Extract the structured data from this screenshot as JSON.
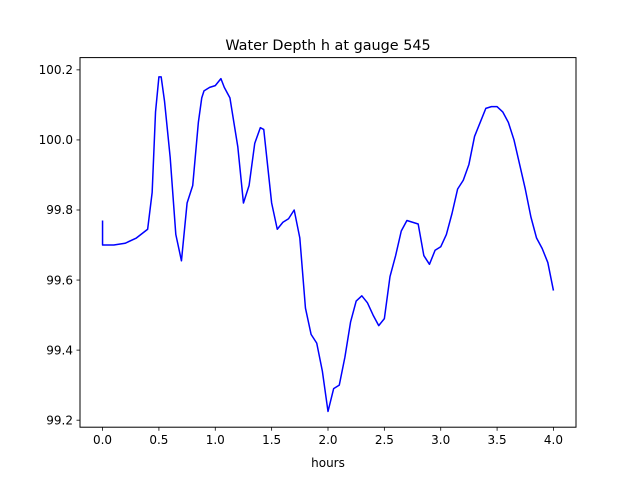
{
  "chart_data": {
    "type": "line",
    "title": "Water Depth h at gauge 545",
    "xlabel": "hours",
    "ylabel": "",
    "xlim": [
      -0.2,
      4.2
    ],
    "ylim": [
      99.18,
      100.235
    ],
    "x_ticks": [
      0.0,
      0.5,
      1.0,
      1.5,
      2.0,
      2.5,
      3.0,
      3.5,
      4.0
    ],
    "x_tick_labels": [
      "0.0",
      "0.5",
      "1.0",
      "1.5",
      "2.0",
      "2.5",
      "3.0",
      "3.5",
      "4.0"
    ],
    "y_ticks": [
      99.2,
      99.4,
      99.6,
      99.8,
      100.0,
      100.2
    ],
    "y_tick_labels": [
      "99.2",
      "99.4",
      "99.6",
      "99.8",
      "100.0",
      "100.2"
    ],
    "grid": false,
    "line_color": "#0000ff",
    "series": [
      {
        "x": [
          0.0,
          0.0,
          0.1,
          0.2,
          0.3,
          0.4,
          0.44,
          0.47,
          0.5,
          0.52,
          0.55,
          0.6,
          0.65,
          0.7,
          0.75,
          0.8,
          0.85,
          0.88,
          0.9,
          0.95,
          1.0,
          1.05,
          1.08,
          1.13,
          1.2,
          1.25,
          1.3,
          1.35,
          1.4,
          1.43,
          1.5,
          1.55,
          1.6,
          1.65,
          1.7,
          1.75,
          1.8,
          1.85,
          1.9,
          1.95,
          2.0,
          2.05,
          2.1,
          2.15,
          2.2,
          2.25,
          2.3,
          2.35,
          2.4,
          2.45,
          2.5,
          2.55,
          2.6,
          2.65,
          2.7,
          2.75,
          2.8,
          2.85,
          2.9,
          2.95,
          3.0,
          3.05,
          3.1,
          3.15,
          3.2,
          3.25,
          3.3,
          3.35,
          3.4,
          3.45,
          3.5,
          3.55,
          3.6,
          3.65,
          3.7,
          3.75,
          3.8,
          3.85,
          3.9,
          3.95,
          4.0
        ],
        "y": [
          99.77,
          99.7,
          99.7,
          99.705,
          99.72,
          99.745,
          99.85,
          100.08,
          100.18,
          100.18,
          100.11,
          99.95,
          99.73,
          99.655,
          99.82,
          99.87,
          100.05,
          100.12,
          100.14,
          100.15,
          100.155,
          100.175,
          100.15,
          100.12,
          99.98,
          99.82,
          99.87,
          99.99,
          100.035,
          100.03,
          99.82,
          99.745,
          99.765,
          99.775,
          99.8,
          99.72,
          99.52,
          99.445,
          99.42,
          99.34,
          99.225,
          99.29,
          99.3,
          99.38,
          99.48,
          99.54,
          99.555,
          99.535,
          99.5,
          99.47,
          99.49,
          99.61,
          99.67,
          99.74,
          99.77,
          99.765,
          99.76,
          99.67,
          99.645,
          99.685,
          99.695,
          99.73,
          99.79,
          99.86,
          99.885,
          99.93,
          100.01,
          100.05,
          100.09,
          100.095,
          100.095,
          100.08,
          100.05,
          100.0,
          99.93,
          99.86,
          99.78,
          99.72,
          99.69,
          99.65,
          99.57
        ]
      }
    ]
  }
}
